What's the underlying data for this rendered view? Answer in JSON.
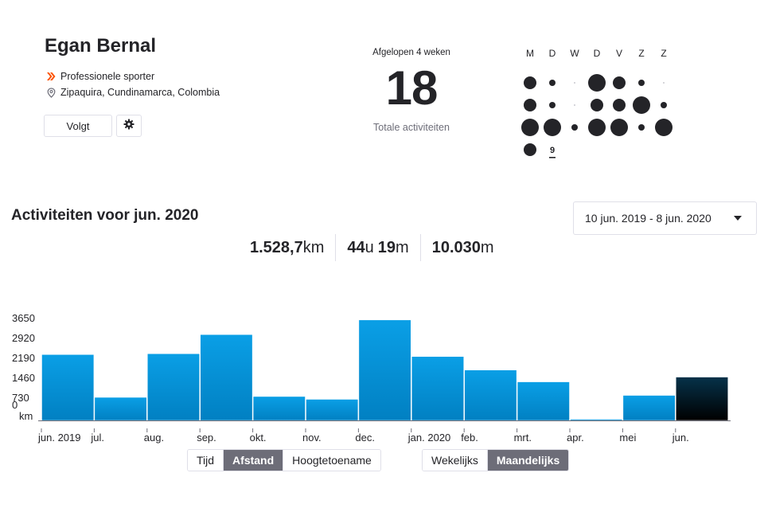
{
  "profile": {
    "name": "Egan Bernal",
    "role": "Professionele sporter",
    "location": "Zipaquira, Cundinamarca, Colombia",
    "follow_label": "Volgt",
    "role_icon": "strava-chevrons-icon",
    "location_icon": "location-pin-icon",
    "settings_icon": "gear-icon",
    "accent_color": "#fc5200"
  },
  "recent": {
    "label": "Afgelopen 4 weken",
    "count": "18",
    "caption": "Totale activiteiten"
  },
  "calendar": {
    "day_headers": [
      "M",
      "D",
      "W",
      "D",
      "V",
      "Z",
      "Z"
    ],
    "weeks": [
      [
        "m",
        "s",
        "n",
        "l",
        "m",
        "s",
        "n"
      ],
      [
        "m",
        "s",
        "n",
        "m",
        "m",
        "l",
        "s"
      ],
      [
        "l",
        "l",
        "s",
        "l",
        "l",
        "s",
        "l"
      ],
      [
        "m",
        "today",
        null,
        null,
        null,
        null,
        null
      ]
    ],
    "today_label": "9",
    "dot_color": "#242428"
  },
  "chart_section": {
    "title": "Activiteiten voor jun. 2020",
    "range_value": "10 jun. 2019 - 8 jun. 2020",
    "totals": [
      {
        "value": "1.528,7",
        "unit": "km"
      },
      {
        "value": "44",
        "unit": "u",
        "value2": "19",
        "unit2": "m"
      },
      {
        "value": "10.030",
        "unit": "m"
      }
    ]
  },
  "chart_data": {
    "type": "bar",
    "unit": "km",
    "ylim": [
      0,
      3650
    ],
    "yticks": [
      "3650",
      "2920",
      "2190",
      "1460",
      "730",
      "0"
    ],
    "categories": [
      "jun. 2019",
      "jul.",
      "aug.",
      "sep.",
      "okt.",
      "nov.",
      "dec.",
      "jan. 2020",
      "feb.",
      "mrt.",
      "apr.",
      "mei",
      "jun."
    ],
    "values": [
      2340,
      820,
      2370,
      3050,
      850,
      750,
      3570,
      2270,
      1790,
      1370,
      30,
      890,
      1540
    ],
    "highlighted_index": 12,
    "bar_color": "#0191d8",
    "highlight_color_top": "#06324a",
    "highlight_color_bottom": "#000000",
    "grid": false
  },
  "toggles": {
    "metric": [
      "Tijd",
      "Afstand",
      "Hoogtetoename"
    ],
    "metric_active": 1,
    "period": [
      "Wekelijks",
      "Maandelijks"
    ],
    "period_active": 1
  }
}
